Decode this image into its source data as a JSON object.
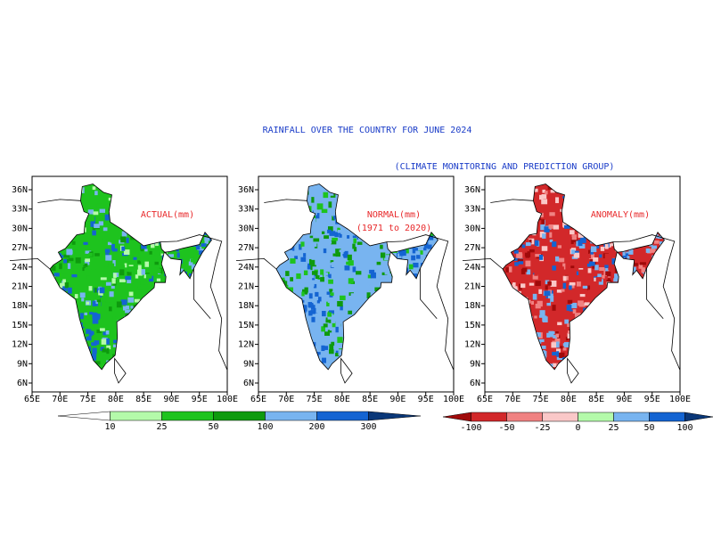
{
  "header": {
    "title": "RAINFALL OVER THE COUNTRY FOR JUNE 2024",
    "subtitle": "(CLIMATE MONITORING AND PREDICTION GROUP)"
  },
  "panels": [
    {
      "label": [
        "ACTUAL(mm)"
      ]
    },
    {
      "label": [
        "NORMAL(mm)",
        "(1971 to 2020)"
      ]
    },
    {
      "label": [
        "ANOMALY(mm)"
      ]
    }
  ],
  "x_ticks": [
    "65E",
    "70E",
    "75E",
    "80E",
    "85E",
    "90E",
    "95E",
    "100E"
  ],
  "y_ticks": [
    "6N",
    "9N",
    "12N",
    "15N",
    "18N",
    "21N",
    "24N",
    "27N",
    "30N",
    "33N",
    "36N"
  ],
  "colorbars": {
    "rainfall": {
      "labels": [
        "10",
        "25",
        "50",
        "100",
        "200",
        "300"
      ],
      "colors": [
        "#ffffff",
        "#b4faaa",
        "#1ec31e",
        "#0e9a0e",
        "#78b4f0",
        "#1464d2",
        "#0a3778"
      ]
    },
    "anomaly": {
      "labels": [
        "-100",
        "-50",
        "-25",
        "0",
        "25",
        "50",
        "100"
      ],
      "colors": [
        "#a00a0a",
        "#d2282a",
        "#f08282",
        "#fac8c8",
        "#b4faaa",
        "#78b4f0",
        "#1464d2",
        "#0a3778"
      ]
    }
  }
}
